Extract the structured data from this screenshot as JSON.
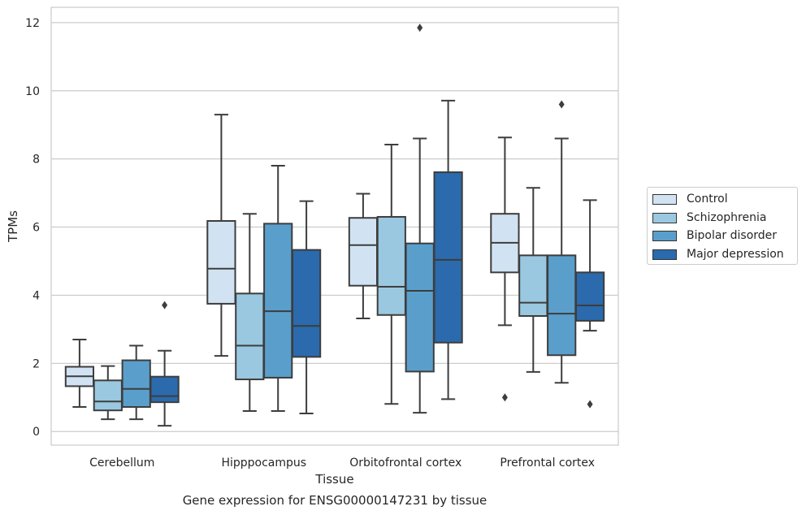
{
  "chart_data": {
    "type": "box",
    "xlabel": "Tissue",
    "ylabel": "TPMs",
    "ylim": [
      -0.4,
      12.45
    ],
    "yticks": [
      0,
      2,
      4,
      6,
      8,
      10,
      12
    ],
    "grid": "horizontal",
    "legend_position": "center-right",
    "categories": [
      "Cerebellum",
      "Hipppocampus",
      "Orbitofrontal cortex",
      "Prefrontal cortex"
    ],
    "series": [
      {
        "name": "Control",
        "color": "#d1e3f3",
        "boxes": [
          {
            "whislo": 0.72,
            "q1": 1.33,
            "med": 1.62,
            "q3": 1.9,
            "whishi": 2.7,
            "fliers": []
          },
          {
            "whislo": 2.22,
            "q1": 3.75,
            "med": 4.78,
            "q3": 6.18,
            "whishi": 9.3,
            "fliers": []
          },
          {
            "whislo": 3.32,
            "q1": 4.28,
            "med": 5.47,
            "q3": 6.27,
            "whishi": 6.98,
            "fliers": []
          },
          {
            "whislo": 3.12,
            "q1": 4.67,
            "med": 5.54,
            "q3": 6.39,
            "whishi": 8.63,
            "fliers": [
              1.0
            ]
          }
        ]
      },
      {
        "name": "Schizophrenia",
        "color": "#9ac8e0",
        "boxes": [
          {
            "whislo": 0.36,
            "q1": 0.62,
            "med": 0.88,
            "q3": 1.5,
            "whishi": 1.92,
            "fliers": []
          },
          {
            "whislo": 0.6,
            "q1": 1.53,
            "med": 2.52,
            "q3": 4.05,
            "whishi": 6.39,
            "fliers": []
          },
          {
            "whislo": 0.81,
            "q1": 3.42,
            "med": 4.25,
            "q3": 6.3,
            "whishi": 8.42,
            "fliers": []
          },
          {
            "whislo": 1.75,
            "q1": 3.39,
            "med": 3.78,
            "q3": 5.17,
            "whishi": 7.15,
            "fliers": []
          }
        ]
      },
      {
        "name": "Bipolar disorder",
        "color": "#5a9fcc",
        "boxes": [
          {
            "whislo": 0.36,
            "q1": 0.72,
            "med": 1.25,
            "q3": 2.09,
            "whishi": 2.52,
            "fliers": []
          },
          {
            "whislo": 0.6,
            "q1": 1.58,
            "med": 3.53,
            "q3": 6.1,
            "whishi": 7.8,
            "fliers": []
          },
          {
            "whislo": 0.55,
            "q1": 1.76,
            "med": 4.13,
            "q3": 5.52,
            "whishi": 8.6,
            "fliers": [
              11.85
            ]
          },
          {
            "whislo": 1.43,
            "q1": 2.24,
            "med": 3.46,
            "q3": 5.17,
            "whishi": 8.6,
            "fliers": [
              9.6
            ]
          }
        ]
      },
      {
        "name": "Major depression",
        "color": "#2a6aad",
        "boxes": [
          {
            "whislo": 0.17,
            "q1": 0.86,
            "med": 1.04,
            "q3": 1.61,
            "whishi": 2.37,
            "fliers": [
              3.71
            ]
          },
          {
            "whislo": 0.53,
            "q1": 2.19,
            "med": 3.1,
            "q3": 5.33,
            "whishi": 6.76,
            "fliers": []
          },
          {
            "whislo": 0.95,
            "q1": 2.61,
            "med": 5.04,
            "q3": 7.61,
            "whishi": 9.71,
            "fliers": []
          },
          {
            "whislo": 2.96,
            "q1": 3.25,
            "med": 3.7,
            "q3": 4.67,
            "whishi": 6.79,
            "fliers": [
              0.8
            ]
          }
        ]
      }
    ],
    "caption": "Gene expression for ENSG00000147231 by tissue"
  }
}
